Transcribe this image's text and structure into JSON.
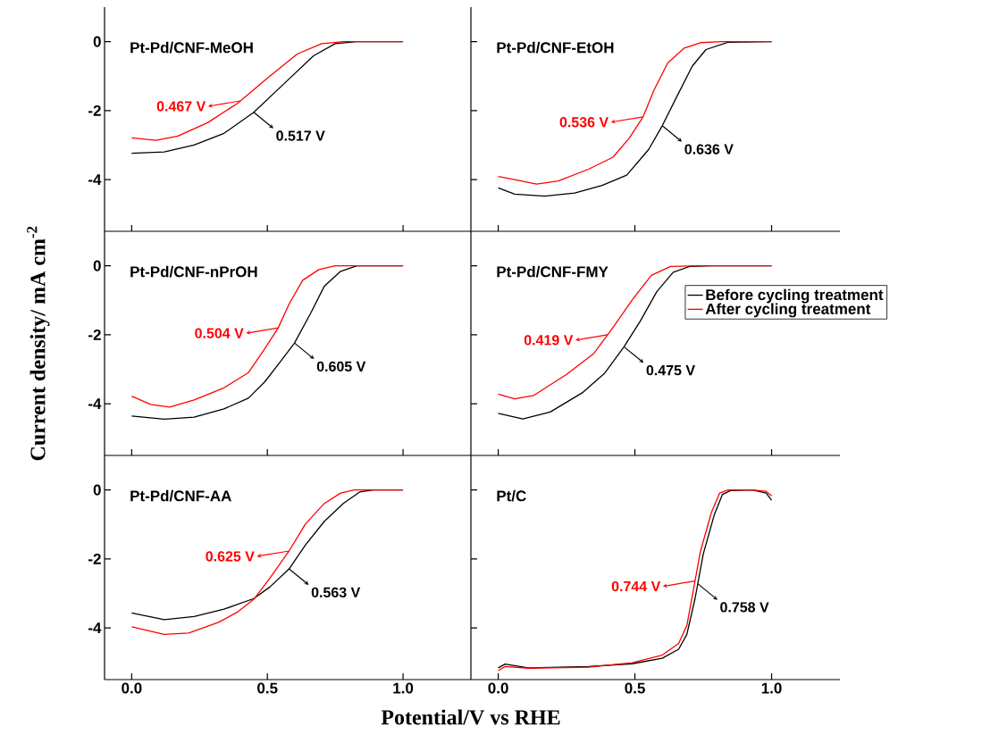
{
  "chart_data": [
    {
      "type": "line",
      "title": "Pt-Pd/CNF-MeOH",
      "xlim": [
        -0.1,
        1.25
      ],
      "ylim": [
        -5.5,
        1
      ],
      "xticks": [
        {
          "value": 0,
          "label": null
        },
        {
          "value": 0.5,
          "label": null
        },
        {
          "value": 1,
          "label": null
        }
      ],
      "yticks": [
        0,
        -2,
        -4
      ],
      "tick_labels": "y",
      "series": [
        {
          "color": "#000000",
          "x": [
            0,
            0.12,
            0.23,
            0.34,
            0.45,
            0.56,
            0.67,
            0.75,
            0.83,
            1.0
          ],
          "values": [
            -3.24,
            -3.2,
            -3.0,
            -2.66,
            -2.05,
            -1.23,
            -0.41,
            -0.06,
            0,
            0
          ]
        },
        {
          "color": "#ff0000",
          "x": [
            0,
            0.09,
            0.17,
            0.28,
            0.39,
            0.5,
            0.61,
            0.7,
            0.78,
            1.0
          ],
          "values": [
            -2.79,
            -2.86,
            -2.74,
            -2.35,
            -1.79,
            -1.06,
            -0.36,
            -0.06,
            0,
            0
          ]
        }
      ],
      "annotations": [
        {
          "text": "0.517 V",
          "x": 0.45,
          "y": -2.05
        },
        {
          "text": "0.467 V",
          "x": 0.4,
          "y": -1.72
        }
      ]
    },
    {
      "type": "line",
      "title": "Pt-Pd/CNF-EtOH",
      "xlim": [
        -0.1,
        1.25
      ],
      "ylim": [
        -5.5,
        1
      ],
      "xticks": [
        {
          "value": 0,
          "label": null
        },
        {
          "value": 0.5,
          "label": null
        },
        {
          "value": 1,
          "label": null
        }
      ],
      "yticks": [
        {
          "value": 0,
          "label": null
        },
        {
          "value": -2,
          "label": null
        },
        {
          "value": -4,
          "label": null
        }
      ],
      "tick_labels": false,
      "series": [
        {
          "color": "#000000",
          "x": [
            0,
            0.06,
            0.17,
            0.28,
            0.38,
            0.47,
            0.55,
            0.6,
            0.66,
            0.71,
            0.76,
            0.84,
            1.0
          ],
          "values": [
            -4.24,
            -4.42,
            -4.48,
            -4.39,
            -4.17,
            -3.87,
            -3.13,
            -2.44,
            -1.49,
            -0.71,
            -0.23,
            -0.02,
            0
          ]
        },
        {
          "color": "#ff0000",
          "x": [
            0,
            0.06,
            0.14,
            0.22,
            0.33,
            0.42,
            0.48,
            0.53,
            0.57,
            0.62,
            0.68,
            0.74,
            0.82,
            1.0
          ],
          "values": [
            -3.91,
            -4.0,
            -4.13,
            -4.04,
            -3.7,
            -3.35,
            -2.79,
            -2.18,
            -1.4,
            -0.62,
            -0.19,
            -0.03,
            0,
            0
          ]
        }
      ],
      "annotations": [
        {
          "text": "0.636 V",
          "x": 0.6,
          "y": -2.44
        },
        {
          "text": "0.536 V",
          "x": 0.53,
          "y": -2.18
        }
      ]
    },
    {
      "type": "line",
      "title": "Pt-Pd/CNF-nPrOH",
      "ylabel": "Current density/ mA cm$^{-2}$",
      "xlim": [
        -0.1,
        1.25
      ],
      "ylim": [
        -5.5,
        1
      ],
      "xticks": [
        {
          "value": 0,
          "label": null
        },
        {
          "value": 0.5,
          "label": null
        },
        {
          "value": 1,
          "label": null
        }
      ],
      "yticks": [
        0,
        -2,
        -4
      ],
      "tick_labels": "y",
      "series": [
        {
          "color": "#000000",
          "x": [
            0,
            0.12,
            0.23,
            0.34,
            0.43,
            0.49,
            0.55,
            0.6,
            0.66,
            0.71,
            0.77,
            0.83,
            1.0
          ],
          "values": [
            -4.36,
            -4.45,
            -4.39,
            -4.15,
            -3.84,
            -3.37,
            -2.76,
            -2.24,
            -1.37,
            -0.59,
            -0.16,
            0,
            0
          ]
        },
        {
          "color": "#ff0000",
          "x": [
            0,
            0.07,
            0.14,
            0.23,
            0.34,
            0.43,
            0.49,
            0.54,
            0.58,
            0.63,
            0.69,
            0.75,
            1.0
          ],
          "values": [
            -3.78,
            -4.02,
            -4.1,
            -3.89,
            -3.54,
            -3.1,
            -2.41,
            -1.8,
            -1.11,
            -0.42,
            -0.11,
            0,
            0
          ]
        }
      ],
      "annotations": [
        {
          "text": "0.605 V",
          "x": 0.6,
          "y": -2.24
        },
        {
          "text": "0.504 V",
          "x": 0.54,
          "y": -1.8
        }
      ]
    },
    {
      "type": "line",
      "title": "Pt-Pd/CNF-FMY",
      "xlim": [
        -0.1,
        1.25
      ],
      "ylim": [
        -5.5,
        1
      ],
      "xticks": [
        {
          "value": 0,
          "label": null
        },
        {
          "value": 0.5,
          "label": null
        },
        {
          "value": 1,
          "label": null
        }
      ],
      "yticks": [
        {
          "value": 0,
          "label": null
        },
        {
          "value": -2,
          "label": null
        },
        {
          "value": -4,
          "label": null
        }
      ],
      "tick_labels": false,
      "legend": "right",
      "series": [
        {
          "name": "Before cycling treatment",
          "color": "#000000",
          "x": [
            0,
            0.09,
            0.19,
            0.31,
            0.39,
            0.46,
            0.52,
            0.58,
            0.64,
            0.7,
            0.78,
            1.0
          ],
          "values": [
            -4.28,
            -4.44,
            -4.24,
            -3.67,
            -3.11,
            -2.35,
            -1.6,
            -0.75,
            -0.19,
            -0.02,
            0,
            0
          ]
        },
        {
          "name": "After cycling treatment",
          "color": "#ff0000",
          "x": [
            0,
            0.06,
            0.13,
            0.25,
            0.35,
            0.42,
            0.49,
            0.56,
            0.63,
            0.73,
            1.0
          ],
          "values": [
            -3.72,
            -3.86,
            -3.76,
            -3.15,
            -2.54,
            -1.79,
            -0.99,
            -0.28,
            -0.02,
            0,
            0
          ]
        }
      ],
      "annotations": [
        {
          "text": "0.475 V",
          "x": 0.46,
          "y": -2.35
        },
        {
          "text": "0.419 V",
          "x": 0.4,
          "y": -2.0
        }
      ]
    },
    {
      "type": "line",
      "title": "Pt-Pd/CNF-AA",
      "xlabel": "Potential/V vs RHE",
      "xlim": [
        -0.1,
        1.25
      ],
      "ylim": [
        -5.5,
        1
      ],
      "xticks": [
        {
          "value": 0,
          "label": "0.0"
        },
        {
          "value": 0.5,
          "label": "0.5"
        },
        {
          "value": 1,
          "label": "1.0"
        }
      ],
      "yticks": [
        0,
        -2,
        -4
      ],
      "series": [
        {
          "color": "#000000",
          "x": [
            0,
            0.12,
            0.23,
            0.34,
            0.45,
            0.51,
            0.58,
            0.64,
            0.71,
            0.78,
            0.84,
            0.89,
            1.0
          ],
          "values": [
            -3.57,
            -3.76,
            -3.67,
            -3.46,
            -3.15,
            -2.81,
            -2.29,
            -1.6,
            -0.91,
            -0.39,
            -0.06,
            0,
            0
          ]
        },
        {
          "color": "#ff0000",
          "x": [
            0,
            0.12,
            0.21,
            0.32,
            0.39,
            0.45,
            0.51,
            0.58,
            0.64,
            0.71,
            0.77,
            0.82,
            1.0
          ],
          "values": [
            -3.97,
            -4.19,
            -4.15,
            -3.84,
            -3.54,
            -3.17,
            -2.55,
            -1.77,
            -0.99,
            -0.39,
            -0.09,
            0,
            0
          ]
        }
      ],
      "annotations": [
        {
          "text": "0.563 V",
          "x": 0.58,
          "y": -2.29
        },
        {
          "text": "0.625 V",
          "x": 0.58,
          "y": -1.77
        }
      ]
    },
    {
      "type": "line",
      "title": "Pt/C",
      "xlim": [
        -0.1,
        1.25
      ],
      "ylim": [
        -5.5,
        1
      ],
      "xticks": [
        {
          "value": 0,
          "label": "0.0"
        },
        {
          "value": 0.5,
          "label": "0.5"
        },
        {
          "value": 1,
          "label": "1.0"
        }
      ],
      "yticks": [
        {
          "value": 0,
          "label": null
        },
        {
          "value": -2,
          "label": null
        },
        {
          "value": -4,
          "label": null
        }
      ],
      "tick_labels": "x",
      "series": [
        {
          "color": "#000000",
          "x": [
            0,
            0.025,
            0.11,
            0.33,
            0.49,
            0.6,
            0.66,
            0.69,
            0.72,
            0.75,
            0.79,
            0.82,
            0.85,
            0.93,
            0.98,
            1.0
          ],
          "values": [
            -5.16,
            -5.05,
            -5.16,
            -5.12,
            -5.04,
            -4.88,
            -4.62,
            -4.19,
            -3.15,
            -1.86,
            -0.73,
            -0.13,
            -0.02,
            0,
            -0.09,
            -0.3
          ]
        },
        {
          "color": "#ff0000",
          "x": [
            0,
            0.025,
            0.11,
            0.33,
            0.49,
            0.6,
            0.66,
            0.69,
            0.71,
            0.74,
            0.78,
            0.81,
            0.84,
            0.93,
            0.98,
            1.0
          ],
          "values": [
            -5.24,
            -5.12,
            -5.17,
            -5.14,
            -5.01,
            -4.79,
            -4.45,
            -3.93,
            -3.07,
            -1.77,
            -0.65,
            -0.09,
            0,
            0,
            -0.04,
            -0.17
          ]
        }
      ],
      "annotations": [
        {
          "text": "0.758 V",
          "x": 0.73,
          "y": -2.72
        },
        {
          "text": "0.744 V",
          "x": 0.72,
          "y": -2.64
        }
      ]
    }
  ]
}
